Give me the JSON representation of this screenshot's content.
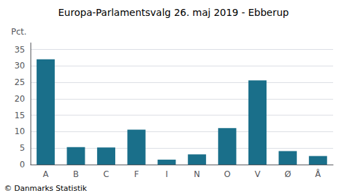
{
  "chart_data": {
    "type": "bar",
    "title": "Europa-Parlamentsvalg 26. maj 2019 - Ebberup",
    "ylabel": "Pct.",
    "footnote": "© Danmarks Statistik",
    "categories": [
      "A",
      "B",
      "C",
      "F",
      "I",
      "N",
      "O",
      "V",
      "Ø",
      "Å"
    ],
    "values": [
      32.0,
      5.3,
      5.2,
      10.6,
      1.5,
      3.1,
      11.1,
      25.6,
      4.1,
      2.6
    ],
    "color": "#1a6f8a",
    "ylim": [
      0,
      37
    ],
    "yticks": [
      0,
      5,
      10,
      15,
      20,
      25,
      30,
      35
    ],
    "grid": true
  }
}
